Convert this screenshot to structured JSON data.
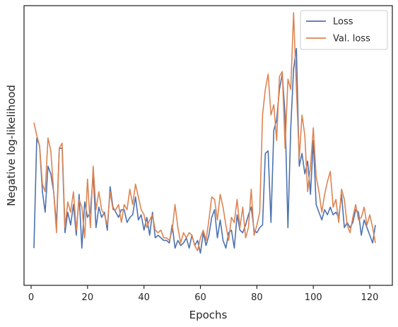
{
  "chart_data": {
    "type": "line",
    "title": "",
    "xlabel": "Epochs",
    "ylabel": "Negative log-likelihood",
    "xlim": [
      -2.5,
      128
    ],
    "ylim": [
      0,
      100
    ],
    "xticks": [
      0,
      20,
      40,
      60,
      80,
      100,
      120
    ],
    "y_tick_labels_shown": false,
    "grid": false,
    "legend_position": "top-right",
    "colors": {
      "Loss": "#4c72b0",
      "Val. loss": "#dd8452",
      "axis": "#262626"
    },
    "x": [
      1,
      2,
      3,
      4,
      5,
      6,
      7,
      8,
      9,
      10,
      11,
      12,
      13,
      14,
      15,
      16,
      17,
      18,
      19,
      20,
      21,
      22,
      23,
      24,
      25,
      26,
      27,
      28,
      29,
      30,
      31,
      32,
      33,
      34,
      35,
      36,
      37,
      38,
      39,
      40,
      41,
      42,
      43,
      44,
      45,
      46,
      47,
      48,
      49,
      50,
      51,
      52,
      53,
      54,
      55,
      56,
      57,
      58,
      59,
      60,
      61,
      62,
      63,
      64,
      65,
      66,
      67,
      68,
      69,
      70,
      71,
      72,
      73,
      74,
      75,
      76,
      77,
      78,
      79,
      80,
      81,
      82,
      83,
      84,
      85,
      86,
      87,
      88,
      89,
      90,
      91,
      92,
      93,
      94,
      95,
      96,
      97,
      98,
      99,
      100,
      101,
      102,
      103,
      104,
      105,
      106,
      107,
      108,
      109,
      110,
      111,
      112,
      113,
      114,
      115,
      116,
      117,
      118,
      119,
      120,
      121,
      122
    ],
    "series": [
      {
        "name": "Loss",
        "values": [
          8,
          51,
          48,
          30,
          22,
          40,
          37,
          30,
          17,
          47,
          47,
          14,
          22,
          17,
          25,
          13,
          29,
          8,
          26,
          20,
          22,
          37,
          16,
          24,
          20,
          22,
          15,
          32,
          24,
          22,
          20,
          23,
          23,
          18,
          20,
          21,
          28,
          19,
          21,
          15,
          20,
          13,
          22,
          12,
          13,
          12,
          11,
          11,
          10,
          17,
          8,
          11,
          9,
          10,
          12,
          8,
          13,
          9,
          11,
          6,
          14,
          9,
          13,
          20,
          23,
          12,
          19,
          11,
          8,
          14,
          15,
          8,
          21,
          15,
          14,
          17,
          21,
          24,
          15,
          14,
          16,
          17,
          45,
          46,
          18,
          54,
          58,
          70,
          76,
          60,
          16,
          55,
          78,
          86,
          40,
          45,
          37,
          42,
          29,
          50,
          25,
          22,
          19,
          23,
          21,
          24,
          21,
          22,
          20,
          29,
          16,
          18,
          16,
          18,
          23,
          22,
          13,
          19,
          16,
          13,
          10,
          17
        ]
      },
      {
        "name": "Val. loss",
        "values": [
          57,
          52,
          48,
          33,
          30,
          51,
          46,
          30,
          14,
          47,
          49,
          16,
          26,
          22,
          30,
          15,
          27,
          24,
          12,
          35,
          16,
          40,
          23,
          30,
          23,
          21,
          17,
          30,
          23,
          23,
          25,
          18,
          25,
          23,
          31,
          25,
          33,
          28,
          23,
          21,
          16,
          19,
          21,
          15,
          14,
          15,
          12,
          12,
          11,
          15,
          25,
          16,
          10,
          14,
          12,
          14,
          13,
          9,
          7,
          12,
          15,
          11,
          19,
          28,
          27,
          19,
          29,
          24,
          17,
          11,
          20,
          18,
          27,
          16,
          24,
          12,
          16,
          31,
          13,
          17,
          22,
          60,
          70,
          76,
          60,
          64,
          50,
          75,
          77,
          47,
          74,
          70,
          100,
          70,
          43,
          60,
          52,
          30,
          40,
          55,
          36,
          30,
          22,
          29,
          34,
          38,
          24,
          27,
          18,
          31,
          27,
          17,
          14,
          20,
          25,
          19,
          20,
          24,
          17,
          21,
          16,
          10
        ]
      }
    ]
  }
}
